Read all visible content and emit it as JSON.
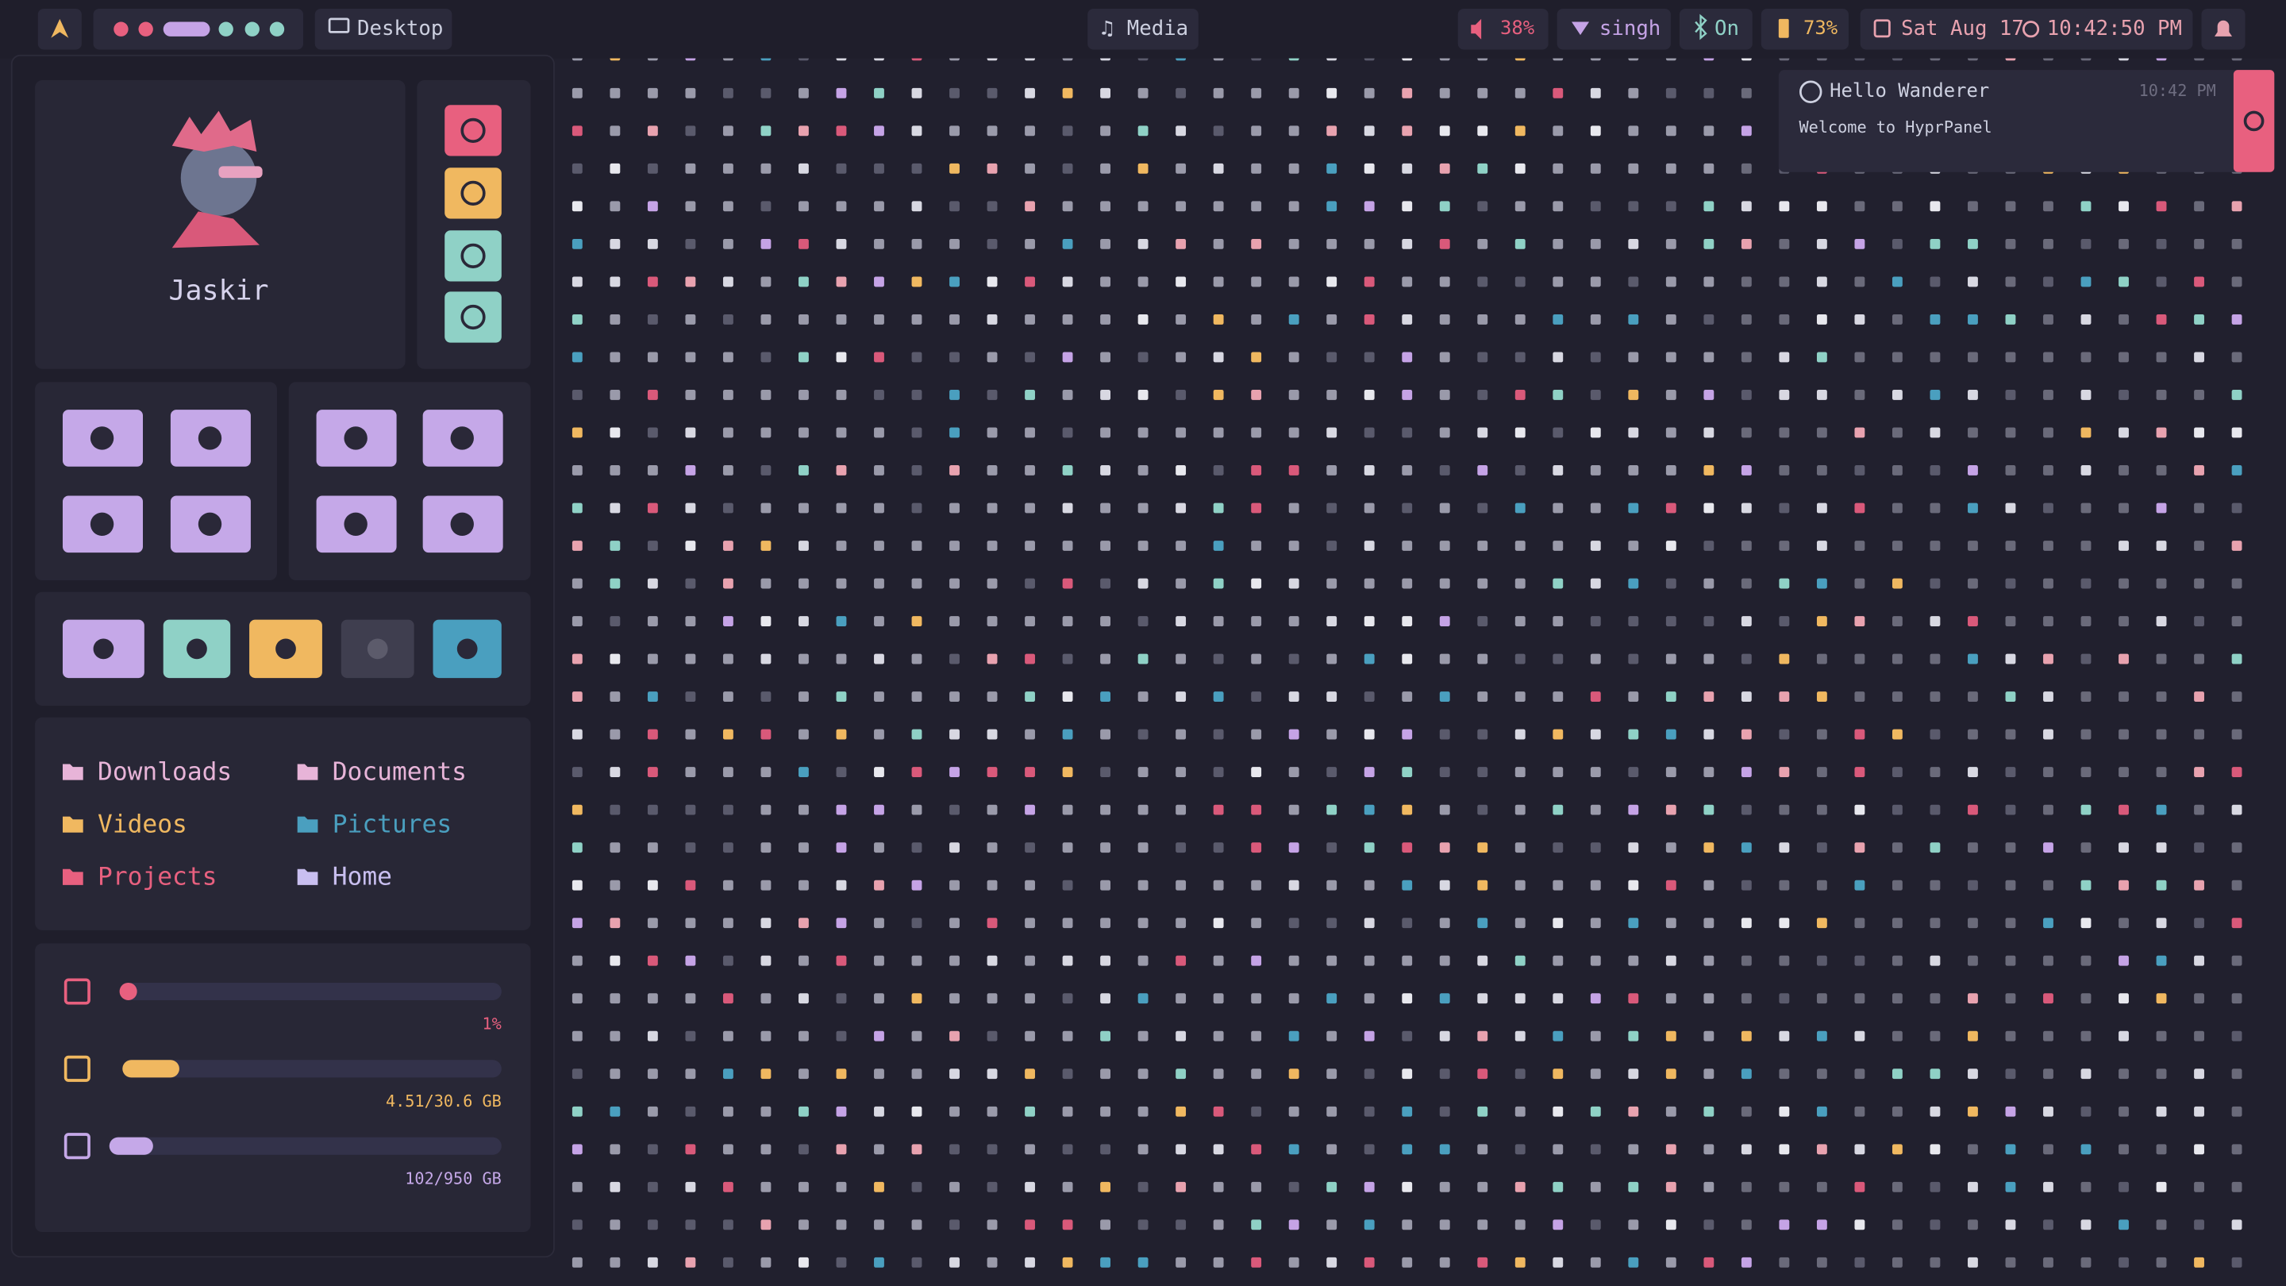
{
  "top_bar": {
    "workspace_label": "Desktop",
    "media": "Media",
    "volume": "38%",
    "network": "singh",
    "bluetooth": "On",
    "battery": "73%",
    "date": "Sat Aug 17",
    "time": "10:42:50 PM"
  },
  "notification": {
    "title": "Hello Wanderer",
    "time": "10:42 PM",
    "body": "Welcome to HyprPanel"
  },
  "dashboard": {
    "user": "Jaskir",
    "directories": [
      "Downloads",
      "Documents",
      "Videos",
      "Pictures",
      "Projects",
      "Home"
    ],
    "stats": {
      "cpu": "1%",
      "ram": "4.51/30.6 GB",
      "disk": "102/950 GB"
    }
  }
}
